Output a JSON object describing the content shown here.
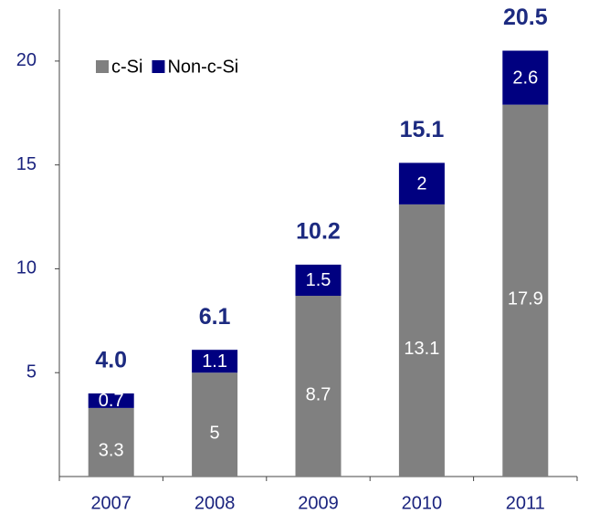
{
  "chart_data": {
    "type": "stacked_bar",
    "categories": [
      "2007",
      "2008",
      "2009",
      "2010",
      "2011"
    ],
    "series": [
      {
        "name": "c-Si",
        "color": "#808080",
        "values": [
          3.3,
          5,
          8.7,
          13.1,
          17.9
        ]
      },
      {
        "name": "Non-c-Si",
        "color": "#000080",
        "values": [
          0.7,
          1.1,
          1.5,
          2,
          2.6
        ]
      }
    ],
    "totals": [
      4,
      6.1,
      10.2,
      15.1,
      20.5
    ],
    "total_labels": [
      "4.0",
      "6.1",
      "10.2",
      "15.1",
      "20.5"
    ],
    "ylim": [
      0,
      22.5
    ],
    "yticks": [
      5,
      10,
      15,
      20
    ],
    "grid": false,
    "legend": "top-left"
  }
}
